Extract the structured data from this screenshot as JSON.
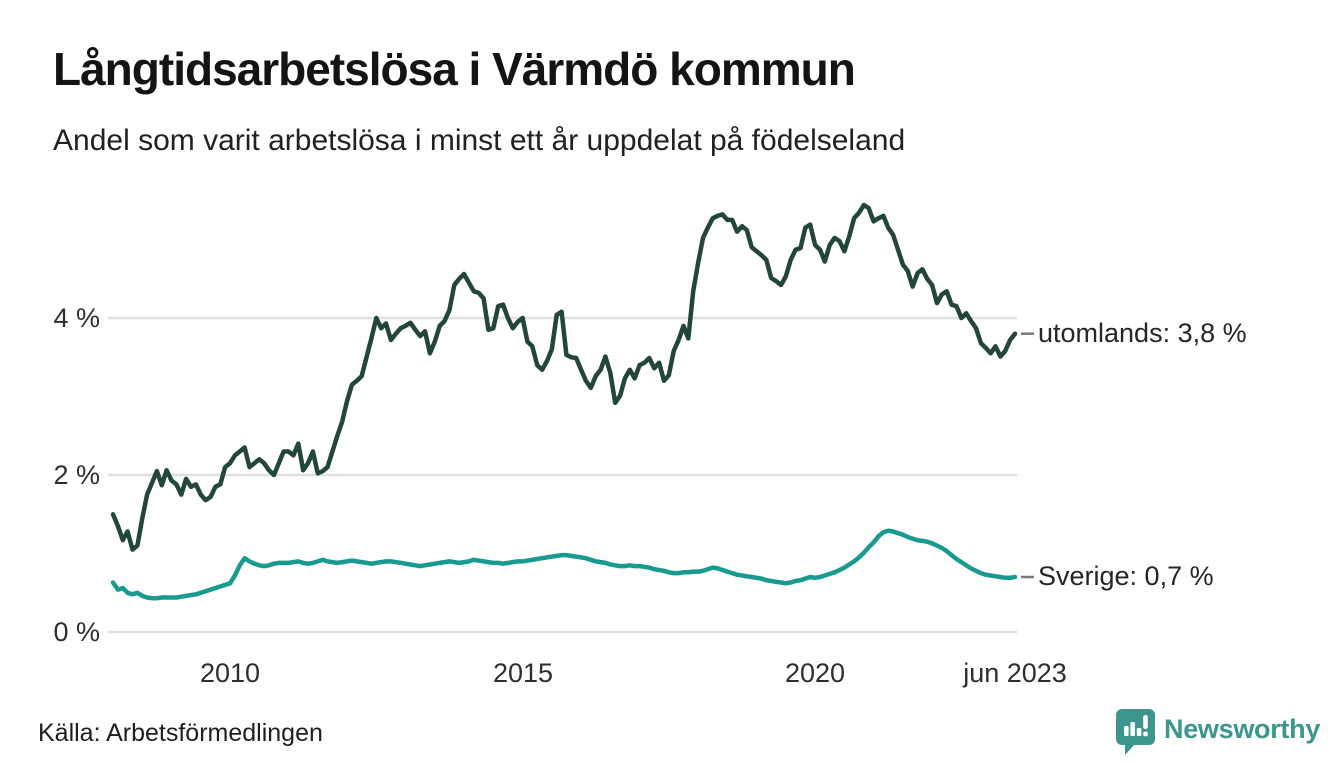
{
  "header": {
    "title": "Långtidsarbetslösa i Värmdö kommun",
    "subtitle": "Andel som varit arbetslösa i minst ett år uppdelat på födelseland"
  },
  "footer": {
    "source": "Källa: Arbetsförmedlingen",
    "brand": {
      "name": "Newsworthy",
      "color": "#3c968e"
    }
  },
  "chart_data": {
    "type": "line",
    "title": "Långtidsarbetslösa i Värmdö kommun",
    "subtitle": "Andel som varit arbetslösa i minst ett år uppdelat på födelseland",
    "unit": "%",
    "x_start": "2008-01",
    "x_end": "2023-06",
    "interval": "month",
    "grid": "horizontal",
    "legend_position": "end-of-line-labels",
    "ylim": [
      0,
      5.7
    ],
    "colors": {
      "grid": "#e0e0e0",
      "leader_dash": "#7a7a7a"
    },
    "y_axis": {
      "ticks": [
        {
          "label": "0 %",
          "value": 0
        },
        {
          "label": "2 %",
          "value": 2
        },
        {
          "label": "4 %",
          "value": 4
        }
      ]
    },
    "x_axis": {
      "ticks": [
        {
          "label": "2010",
          "month": 24
        },
        {
          "label": "2015",
          "month": 84
        },
        {
          "label": "2020",
          "month": 144
        },
        {
          "label": "jun 2023",
          "month": 185
        }
      ]
    },
    "series": [
      {
        "name": "utomlands",
        "end_label": "utomlands: 3,8 %",
        "last_value": "3,8 %",
        "color": "#22453c",
        "values": [
          1.5,
          1.35,
          1.17,
          1.28,
          1.05,
          1.1,
          1.45,
          1.75,
          1.9,
          2.05,
          1.87,
          2.06,
          1.93,
          1.88,
          1.75,
          1.95,
          1.85,
          1.88,
          1.75,
          1.68,
          1.72,
          1.85,
          1.88,
          2.1,
          2.15,
          2.25,
          2.3,
          2.35,
          2.1,
          2.15,
          2.2,
          2.15,
          2.06,
          2.0,
          2.15,
          2.3,
          2.3,
          2.25,
          2.4,
          2.06,
          2.15,
          2.3,
          2.02,
          2.05,
          2.1,
          2.3,
          2.5,
          2.68,
          2.94,
          3.15,
          3.2,
          3.26,
          3.5,
          3.74,
          4.0,
          3.87,
          3.93,
          3.72,
          3.8,
          3.87,
          3.9,
          3.94,
          3.85,
          3.77,
          3.83,
          3.55,
          3.7,
          3.9,
          3.96,
          4.1,
          4.42,
          4.5,
          4.56,
          4.45,
          4.34,
          4.32,
          4.25,
          3.85,
          3.87,
          4.15,
          4.17,
          4.0,
          3.87,
          3.95,
          4.0,
          3.7,
          3.64,
          3.4,
          3.34,
          3.45,
          3.6,
          4.04,
          4.08,
          3.53,
          3.5,
          3.49,
          3.34,
          3.2,
          3.11,
          3.26,
          3.34,
          3.51,
          3.3,
          2.92,
          3.01,
          3.23,
          3.34,
          3.23,
          3.4,
          3.43,
          3.49,
          3.36,
          3.43,
          3.2,
          3.27,
          3.58,
          3.72,
          3.9,
          3.74,
          4.34,
          4.7,
          5.02,
          5.15,
          5.27,
          5.3,
          5.32,
          5.25,
          5.25,
          5.1,
          5.17,
          5.12,
          4.9,
          4.85,
          4.8,
          4.74,
          4.51,
          4.47,
          4.42,
          4.53,
          4.74,
          4.87,
          4.89,
          5.15,
          5.19,
          4.93,
          4.87,
          4.72,
          4.93,
          5.02,
          4.98,
          4.85,
          5.04,
          5.27,
          5.34,
          5.44,
          5.4,
          5.23,
          5.27,
          5.3,
          5.15,
          5.06,
          4.87,
          4.68,
          4.6,
          4.4,
          4.57,
          4.62,
          4.5,
          4.42,
          4.19,
          4.3,
          4.34,
          4.17,
          4.15,
          4.0,
          4.06,
          3.96,
          3.87,
          3.68,
          3.62,
          3.55,
          3.64,
          3.51,
          3.58,
          3.72,
          3.8
        ]
      },
      {
        "name": "Sverige",
        "end_label": "Sverige: 0,7 %",
        "last_value": "0,7 %",
        "color": "#189b8e",
        "values": [
          0.63,
          0.54,
          0.56,
          0.5,
          0.48,
          0.5,
          0.46,
          0.44,
          0.43,
          0.43,
          0.44,
          0.44,
          0.44,
          0.44,
          0.45,
          0.46,
          0.47,
          0.48,
          0.5,
          0.52,
          0.54,
          0.56,
          0.58,
          0.6,
          0.62,
          0.72,
          0.85,
          0.94,
          0.9,
          0.87,
          0.85,
          0.84,
          0.85,
          0.87,
          0.88,
          0.88,
          0.88,
          0.89,
          0.9,
          0.88,
          0.87,
          0.88,
          0.9,
          0.92,
          0.9,
          0.89,
          0.88,
          0.89,
          0.9,
          0.91,
          0.9,
          0.89,
          0.88,
          0.87,
          0.88,
          0.89,
          0.9,
          0.9,
          0.89,
          0.88,
          0.87,
          0.86,
          0.85,
          0.84,
          0.85,
          0.86,
          0.87,
          0.88,
          0.89,
          0.9,
          0.89,
          0.88,
          0.89,
          0.9,
          0.92,
          0.91,
          0.9,
          0.89,
          0.88,
          0.88,
          0.87,
          0.88,
          0.89,
          0.9,
          0.9,
          0.91,
          0.92,
          0.93,
          0.94,
          0.95,
          0.96,
          0.97,
          0.98,
          0.98,
          0.97,
          0.96,
          0.95,
          0.94,
          0.92,
          0.9,
          0.89,
          0.88,
          0.86,
          0.85,
          0.84,
          0.84,
          0.85,
          0.84,
          0.84,
          0.83,
          0.82,
          0.8,
          0.79,
          0.78,
          0.76,
          0.75,
          0.75,
          0.76,
          0.76,
          0.77,
          0.77,
          0.78,
          0.8,
          0.82,
          0.81,
          0.79,
          0.77,
          0.75,
          0.73,
          0.72,
          0.71,
          0.7,
          0.69,
          0.68,
          0.66,
          0.65,
          0.64,
          0.63,
          0.62,
          0.63,
          0.65,
          0.66,
          0.68,
          0.7,
          0.69,
          0.7,
          0.72,
          0.74,
          0.76,
          0.79,
          0.82,
          0.86,
          0.9,
          0.95,
          1.01,
          1.08,
          1.14,
          1.22,
          1.27,
          1.29,
          1.28,
          1.26,
          1.24,
          1.21,
          1.19,
          1.17,
          1.16,
          1.15,
          1.13,
          1.1,
          1.07,
          1.03,
          0.98,
          0.93,
          0.89,
          0.85,
          0.81,
          0.78,
          0.75,
          0.73,
          0.72,
          0.71,
          0.7,
          0.69,
          0.69,
          0.7
        ]
      }
    ]
  }
}
